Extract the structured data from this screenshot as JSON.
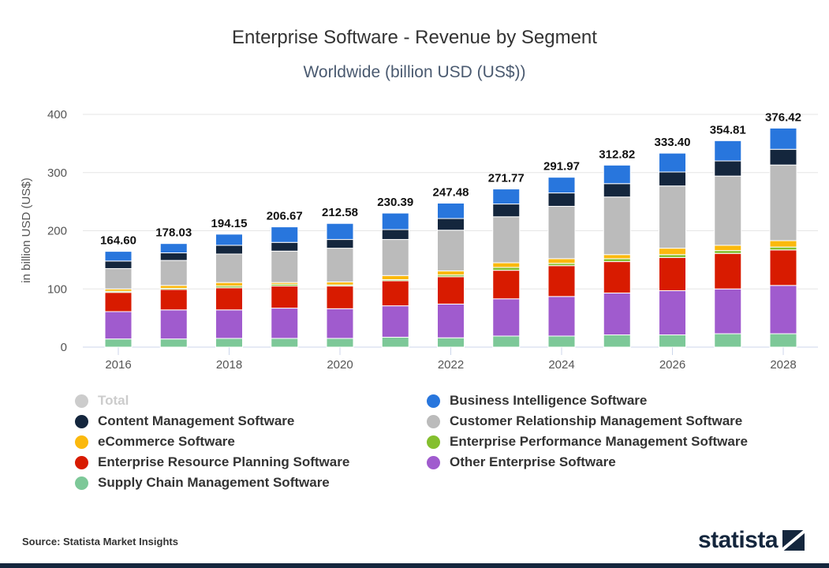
{
  "chart_data": {
    "type": "bar",
    "stacked": true,
    "title": "Enterprise Software - Revenue by Segment",
    "subtitle": "Worldwide (billion USD (US$))",
    "ylabel": "in billion USD (US$)",
    "xlabel": "",
    "ylim": [
      0,
      400
    ],
    "yticks": [
      "0",
      "100",
      "200",
      "300",
      "400"
    ],
    "xtick_labels": [
      "2016",
      "2018",
      "2020",
      "2022",
      "2024",
      "2026",
      "2028"
    ],
    "grid": true,
    "legend_placement": "bottom",
    "categories": [
      "2016",
      "2017",
      "2018",
      "2019",
      "2020",
      "2021",
      "2022",
      "2023",
      "2024",
      "2025",
      "2026",
      "2027",
      "2028"
    ],
    "totals": [
      "164.60",
      "178.03",
      "194.15",
      "206.67",
      "212.58",
      "230.39",
      "247.48",
      "271.77",
      "291.97",
      "312.82",
      "333.40",
      "354.81",
      "376.42"
    ],
    "series": [
      {
        "name": "Supply Chain Management Software",
        "color": "#7dc898",
        "values": [
          14,
          14,
          15,
          15,
          15,
          17,
          16,
          19,
          19,
          21,
          21,
          23,
          23
        ]
      },
      {
        "name": "Other Enterprise Software",
        "color": "#a05bce",
        "values": [
          47,
          50,
          49,
          52,
          51,
          54,
          58,
          64,
          68,
          72,
          76,
          77,
          83
        ]
      },
      {
        "name": "Enterprise Resource Planning Software",
        "color": "#d81b00",
        "values": [
          33,
          35,
          38,
          38,
          39,
          43,
          47,
          49,
          53,
          54,
          57,
          61,
          61
        ]
      },
      {
        "name": "Enterprise Performance Management Software",
        "color": "#84bf2e",
        "values": [
          2,
          2,
          3,
          3,
          2,
          2,
          3,
          5,
          4,
          5,
          5,
          5,
          5
        ]
      },
      {
        "name": "eCommerce Software",
        "color": "#fbb90d",
        "values": [
          4,
          5,
          6,
          3,
          5,
          7,
          7,
          8,
          8,
          7,
          11,
          9,
          11
        ]
      },
      {
        "name": "Customer Relationship Management Software",
        "color": "#bbbbbb",
        "values": [
          35,
          43,
          49,
          54,
          58,
          62,
          70,
          79,
          90,
          99,
          107,
          119,
          130
        ]
      },
      {
        "name": "Content Management Software",
        "color": "#14263d",
        "values": [
          13,
          13,
          15,
          15,
          15,
          17,
          20,
          22,
          23,
          23,
          24,
          26,
          27
        ]
      },
      {
        "name": "Business Intelligence Software",
        "color": "#2876dd",
        "values": [
          16.6,
          16.03,
          19.15,
          26.67,
          27.58,
          28.39,
          26.48,
          25.77,
          26.97,
          31.82,
          32.4,
          34.81,
          36.42
        ]
      }
    ],
    "legend": [
      {
        "name": "Total",
        "color": "#cccccc",
        "disabled": true
      },
      {
        "name": "Business Intelligence Software",
        "color": "#2876dd"
      },
      {
        "name": "Content Management Software",
        "color": "#14263d"
      },
      {
        "name": "Customer Relationship Management Software",
        "color": "#bbbbbb"
      },
      {
        "name": "eCommerce Software",
        "color": "#fbb90d"
      },
      {
        "name": "Enterprise Performance Management Software",
        "color": "#84bf2e"
      },
      {
        "name": "Enterprise Resource Planning Software",
        "color": "#d81b00"
      },
      {
        "name": "Other Enterprise Software",
        "color": "#a05bce"
      },
      {
        "name": "Supply Chain Management Software",
        "color": "#7dc898"
      }
    ]
  },
  "footer": {
    "source": "Source: Statista Market Insights",
    "logo": "statista"
  }
}
